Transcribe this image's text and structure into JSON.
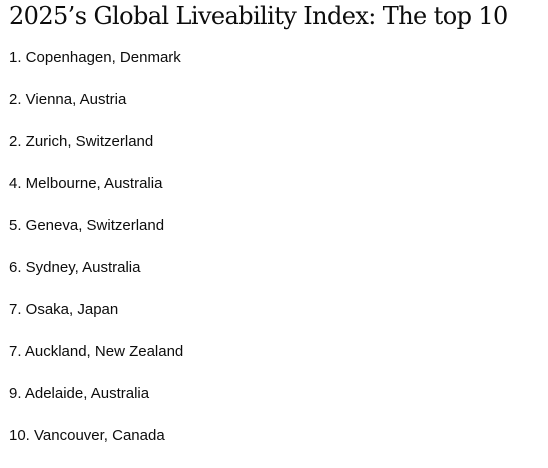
{
  "article": {
    "title": "2025’s Global Liveability Index: The top 10",
    "items": [
      "1. Copenhagen, Denmark",
      "2. Vienna, Austria",
      "2. Zurich, Switzerland",
      "4. Melbourne, Australia",
      "5. Geneva, Switzerland",
      "6. Sydney, Australia",
      "7. Osaka, Japan",
      "7. Auckland, New Zealand",
      "9. Adelaide, Australia",
      "10. Vancouver, Canada"
    ]
  }
}
